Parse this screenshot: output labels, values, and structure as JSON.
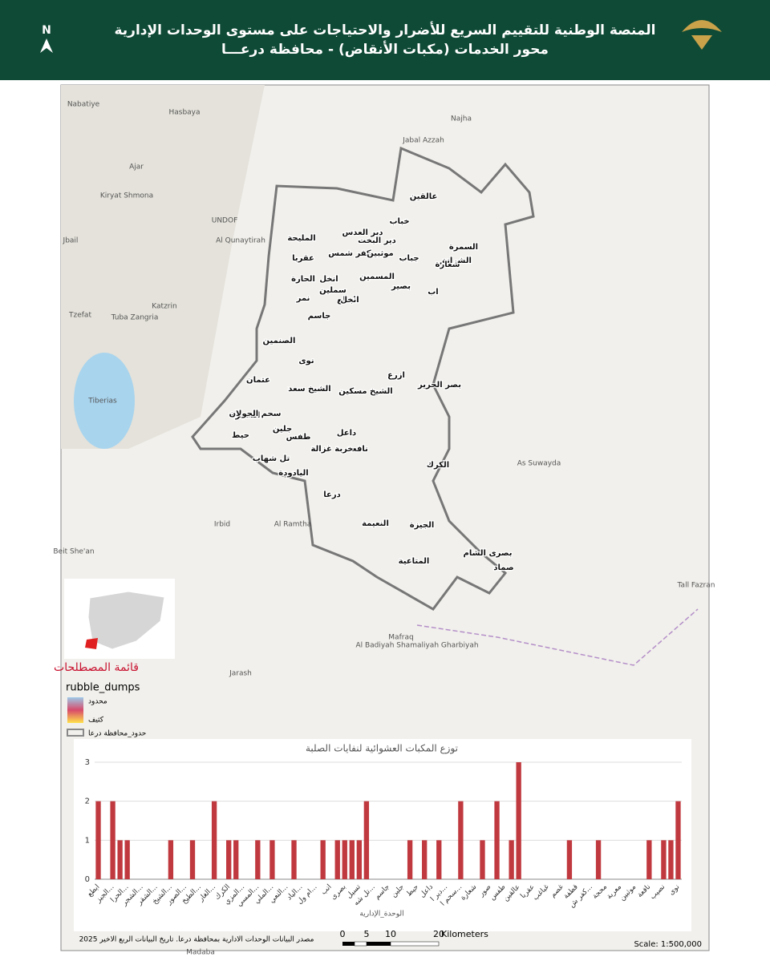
{
  "header": {
    "title": "المنصة الوطنية للتقييم السريع للأضرار والاحتياجات على مستوى الوحدات الإدارية",
    "subtitle": "محور الخدمات (مكبات الأنقاض) - محافظة درعـــا",
    "north": "N"
  },
  "map": {
    "places": [
      "عالقين",
      "خباب",
      "دير العدس",
      "دير البخت",
      "المليحة",
      "الشرانق",
      "السمرة",
      "عقربا",
      "كفر شمس",
      "موثبين",
      "جباب",
      "شعارة",
      "الحارة",
      "المسمين",
      "انخل",
      "بصير",
      "نمر",
      "سملين",
      "ابطع",
      "جاسم",
      "انخل",
      "اب",
      "نوى",
      "الصنمين",
      "جلين",
      "الشيخ سعد",
      "الشيخ مسكين",
      "بصر الحرير",
      "نافعة",
      "الشجرة",
      "سحم الجولان",
      "ازرع",
      "داعل",
      "حيط",
      "عتمان",
      "طفس",
      "خربة غزالة",
      "الكرك",
      "الجيزة",
      "درعا",
      "بصرى الشام",
      "صماد",
      "النعيمة",
      "المتاعية",
      "تل شهاب",
      "اليادودة"
    ],
    "basemap": [
      "Nabatiye",
      "Hasbaya",
      "Ajar",
      "Kiryat Shmona",
      "UNDOF",
      "Al Qunaytirah",
      "Jbail",
      "Katzrin",
      "Tuba Zangria",
      "Tzefat",
      "Tiberias",
      "Irbid",
      "Al Ramtha",
      "Beit She'an",
      "Jarash",
      "Mafraq",
      "Al Badiyah Shamaliyah Gharbiyah",
      "As Suwayda",
      "Najha",
      "Jabal Azzah",
      "Tall Fazran",
      "Madaba"
    ]
  },
  "legend": {
    "title": "قائمة المصطلحات",
    "layer": "rubble_dumps",
    "low": "محدود",
    "high": "كثيف",
    "boundary": "حدود_محافظة درعا"
  },
  "footer": {
    "source": "مصدر البيانات الوحدات الادارية بمحافظة درعا. تاريخ البيانات الربع الاخير 2025",
    "scale": "Scale: 1:500,000",
    "scalebar": [
      "0",
      "5",
      "10",
      "20",
      "Kilometers"
    ]
  },
  "chart_data": {
    "type": "bar",
    "title": "توزع المكبات العشوائية لنفايات الصلبة",
    "x_label": "الوحدة_الإدارية",
    "color": "#c0393f",
    "categories": [
      "ابطع",
      null,
      "الجيز...",
      null,
      "الحرا...",
      null,
      "الشجر...",
      null,
      "الشقر...",
      null,
      "الشيخ...",
      null,
      "الصور...",
      null,
      "الطيخ...",
      null,
      "الغار...",
      null,
      "الكرك",
      null,
      "المزي...",
      null,
      "المسي...",
      null,
      "الملي...",
      null,
      "النعي...",
      null,
      "الياد...",
      null,
      "ام ول...",
      null,
      "انب",
      null,
      "بصرى",
      null,
      "تسيل",
      null,
      "تل شه...",
      null,
      "جاسم",
      null,
      "جلين",
      null,
      "حيط",
      null,
      "داعل",
      null,
      "دير ا...",
      null,
      "سحم ا...",
      null,
      "شعارة",
      null,
      "صور",
      null,
      "طفس",
      null,
      "عالقين",
      null,
      "عقربا",
      null,
      "غباغب",
      null,
      "غصم",
      null,
      "قطفة",
      null,
      "كفر ش...",
      null,
      "محجة",
      null,
      "معربة",
      null,
      "موثبين",
      null,
      "نافعة",
      null,
      "نصيب",
      null,
      "نوى"
    ],
    "values": [
      2,
      0,
      2,
      1,
      1,
      0,
      0,
      0,
      0,
      0,
      1,
      0,
      0,
      1,
      0,
      0,
      2,
      0,
      1,
      1,
      0,
      0,
      1,
      0,
      1,
      0,
      0,
      1,
      0,
      0,
      0,
      1,
      0,
      1,
      1,
      1,
      1,
      2,
      0,
      0,
      0,
      0,
      0,
      1,
      0,
      1,
      0,
      1,
      0,
      0,
      2,
      0,
      0,
      1,
      0,
      2,
      0,
      1,
      3,
      0,
      0,
      0,
      0,
      0,
      0,
      1,
      0,
      0,
      0,
      1,
      0,
      0,
      0,
      0,
      0,
      0,
      1,
      0,
      1,
      1,
      2
    ],
    "ylim": [
      0,
      3
    ],
    "yticks": [
      0,
      1,
      2,
      3
    ],
    "grid": true
  }
}
